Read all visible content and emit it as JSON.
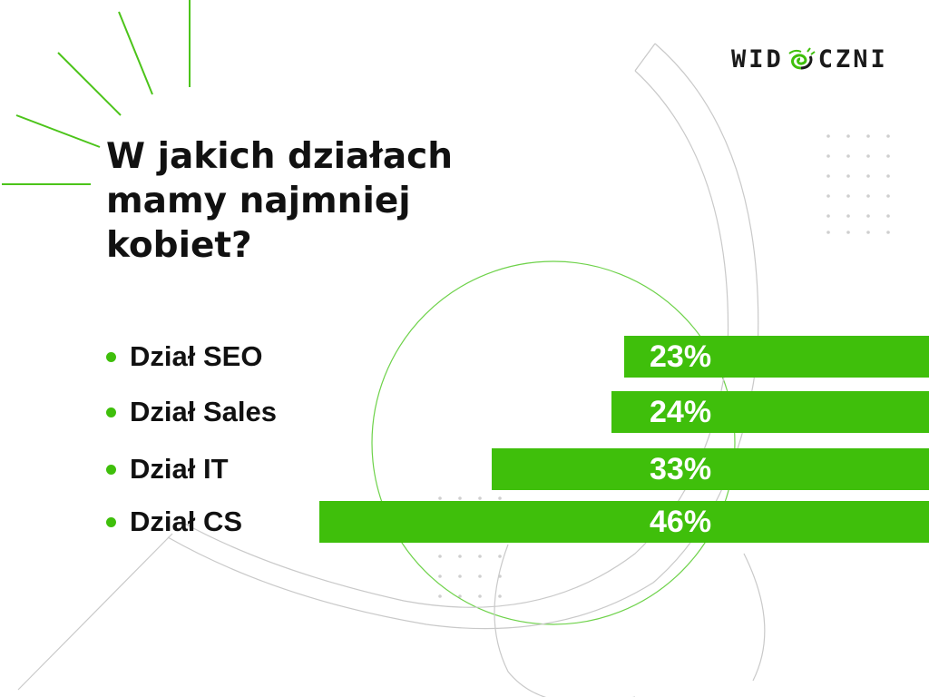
{
  "brand": {
    "logo_left": "WID",
    "logo_right": "CZNI",
    "accent": "#3fbf0b",
    "logo_icon": "eye-swirl-icon"
  },
  "title_lines": [
    "W jakich działach",
    "mamy najmniej",
    "kobiet?"
  ],
  "chart_data": {
    "type": "bar",
    "orientation": "horizontal",
    "title": "W jakich działach mamy najmniej kobiet?",
    "categories": [
      "Dział SEO",
      "Dział Sales",
      "Dział IT",
      "Dział CS"
    ],
    "values": [
      23,
      24,
      33,
      46
    ],
    "value_labels": [
      "23%",
      "24%",
      "33%",
      "46%"
    ],
    "unit": "%",
    "bar_color": "#3fbf0b",
    "bar_anchor": "right",
    "grid": false,
    "legend": "none"
  }
}
